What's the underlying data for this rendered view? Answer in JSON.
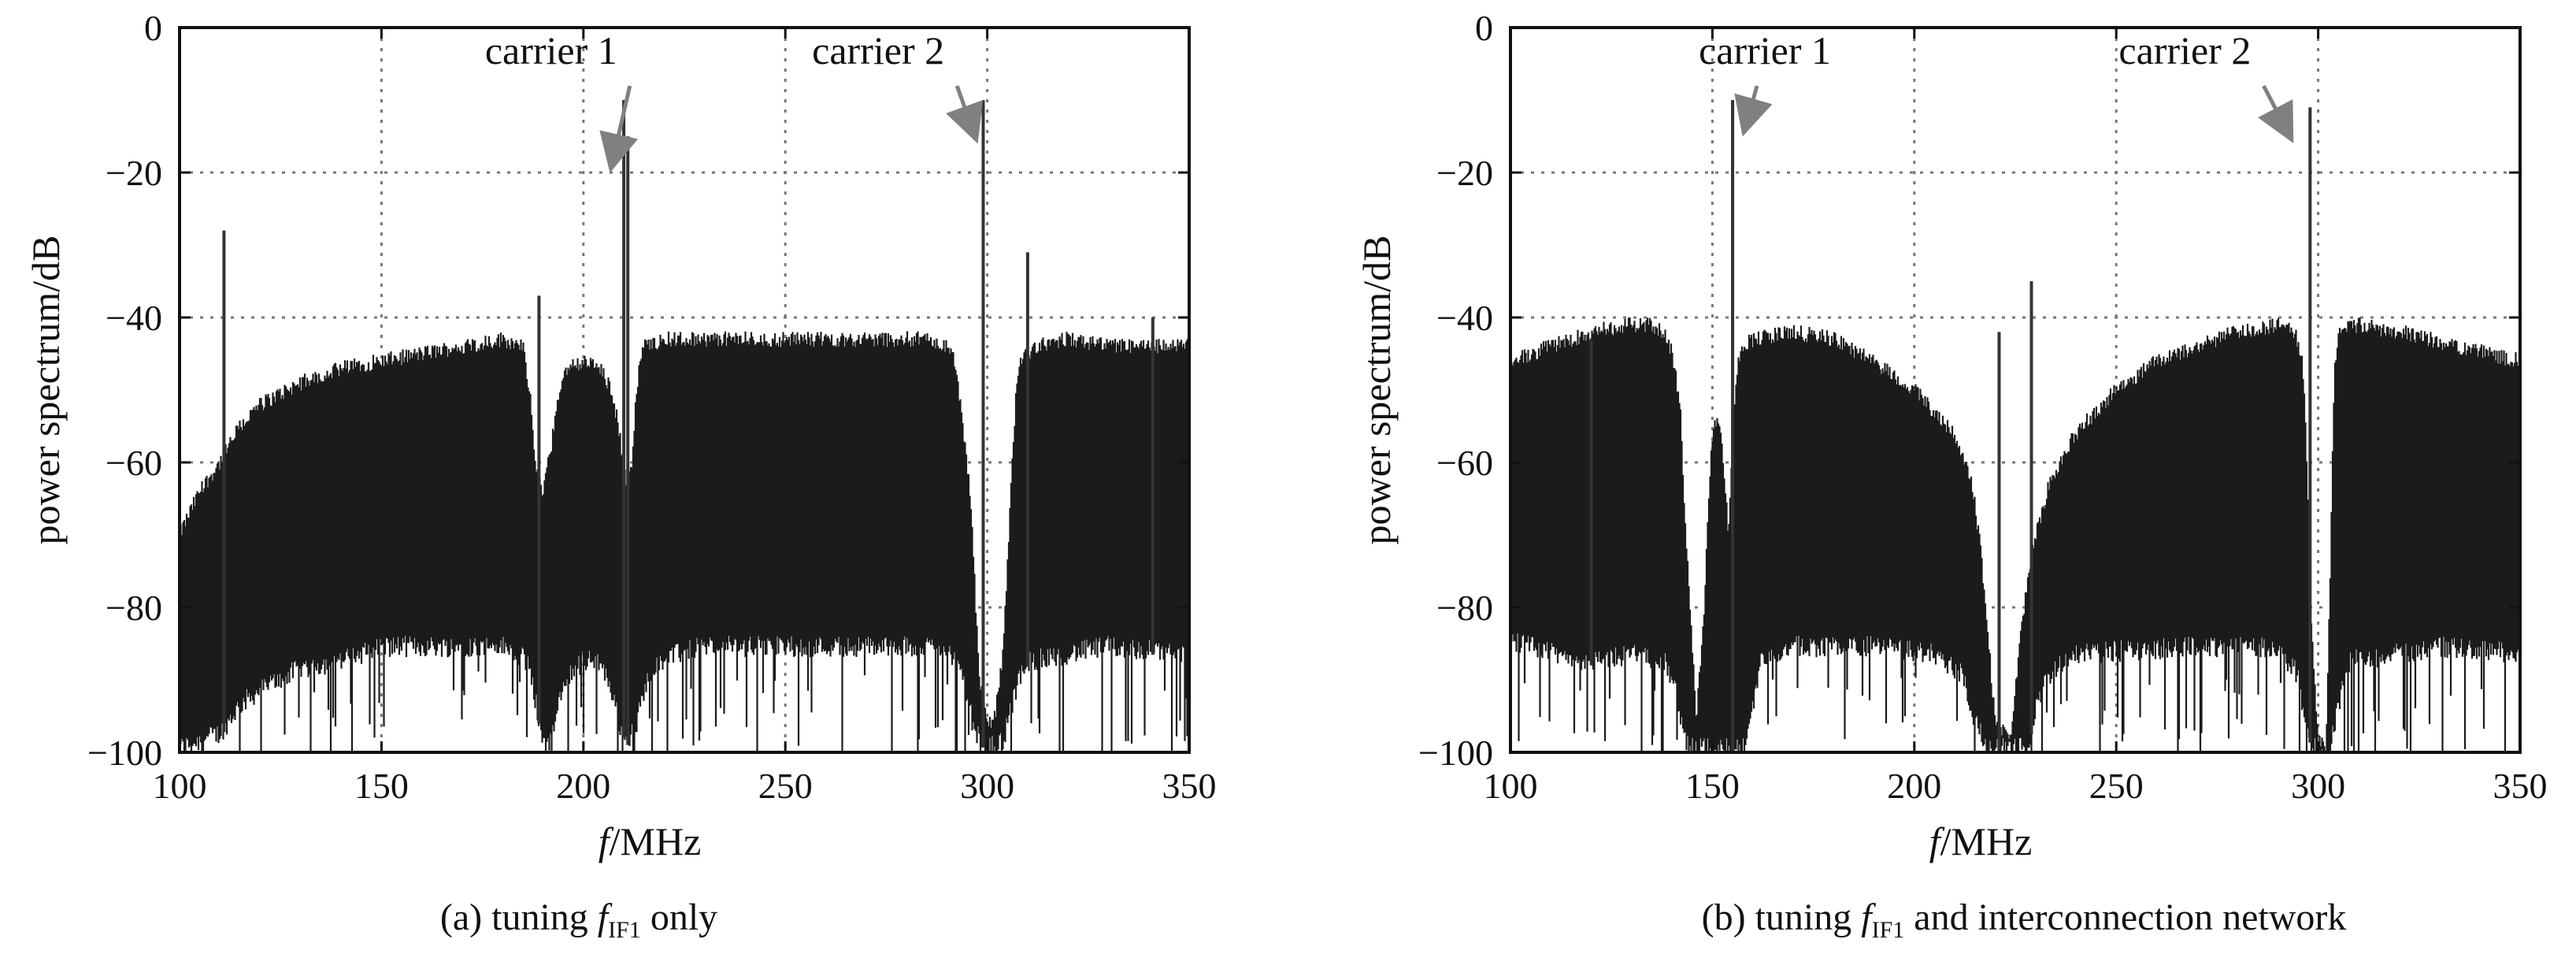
{
  "chart_data": [
    {
      "type": "area",
      "panel": "a",
      "caption": {
        "prefix": "(a) tuning ",
        "var": "f",
        "sub": "IF1",
        "suffix": " only"
      },
      "xlabel": {
        "italic": "f",
        "rest": "/MHz"
      },
      "ylabel": "power spectrum/dB",
      "xlim": [
        100,
        350
      ],
      "ylim": [
        -100,
        0
      ],
      "xticks": [
        100,
        150,
        200,
        250,
        300,
        350
      ],
      "yticks": [
        0,
        -20,
        -40,
        -60,
        -80,
        -100
      ],
      "grid": true,
      "colors": {
        "fill": "#1b1b1b",
        "spur": "#333333",
        "grid": "#777777",
        "arrow": "#808080"
      },
      "envelope_upper": [
        [
          100,
          -70
        ],
        [
          105,
          -64
        ],
        [
          110,
          -60
        ],
        [
          115,
          -55
        ],
        [
          120,
          -52
        ],
        [
          130,
          -49
        ],
        [
          140,
          -47
        ],
        [
          150,
          -46
        ],
        [
          160,
          -45
        ],
        [
          170,
          -44
        ],
        [
          180,
          -43
        ],
        [
          185,
          -44
        ],
        [
          187,
          -52
        ],
        [
          188,
          -60
        ],
        [
          190,
          -64
        ],
        [
          192,
          -58
        ],
        [
          194,
          -50
        ],
        [
          196,
          -47
        ],
        [
          200,
          -46
        ],
        [
          204,
          -47
        ],
        [
          207,
          -50
        ],
        [
          209,
          -56
        ],
        [
          210,
          -61
        ],
        [
          211,
          -63
        ],
        [
          212,
          -60
        ],
        [
          213,
          -52
        ],
        [
          214,
          -46
        ],
        [
          215,
          -44
        ],
        [
          220,
          -43
        ],
        [
          230,
          -43
        ],
        [
          250,
          -43
        ],
        [
          270,
          -43
        ],
        [
          285,
          -43
        ],
        [
          290,
          -44
        ],
        [
          292,
          -46
        ],
        [
          294,
          -55
        ],
        [
          296,
          -66
        ],
        [
          297,
          -78
        ],
        [
          298,
          -90
        ],
        [
          300,
          -96
        ],
        [
          302,
          -95
        ],
        [
          304,
          -86
        ],
        [
          305,
          -75
        ],
        [
          306,
          -62
        ],
        [
          307,
          -52
        ],
        [
          308,
          -46
        ],
        [
          312,
          -44
        ],
        [
          320,
          -43
        ],
        [
          330,
          -44
        ],
        [
          350,
          -44
        ]
      ],
      "envelope_lower": [
        [
          100,
          -100
        ],
        [
          110,
          -98
        ],
        [
          115,
          -94
        ],
        [
          120,
          -92
        ],
        [
          130,
          -89
        ],
        [
          140,
          -88
        ],
        [
          150,
          -86
        ],
        [
          160,
          -86
        ],
        [
          170,
          -86
        ],
        [
          180,
          -86
        ],
        [
          186,
          -88
        ],
        [
          188,
          -93
        ],
        [
          190,
          -99
        ],
        [
          192,
          -99
        ],
        [
          194,
          -94
        ],
        [
          196,
          -90
        ],
        [
          200,
          -88
        ],
        [
          204,
          -88
        ],
        [
          207,
          -92
        ],
        [
          209,
          -97
        ],
        [
          211,
          -99
        ],
        [
          213,
          -97
        ],
        [
          215,
          -92
        ],
        [
          218,
          -88
        ],
        [
          230,
          -86
        ],
        [
          260,
          -86
        ],
        [
          290,
          -86
        ],
        [
          294,
          -90
        ],
        [
          297,
          -98
        ],
        [
          300,
          -100
        ],
        [
          304,
          -99
        ],
        [
          307,
          -92
        ],
        [
          310,
          -88
        ],
        [
          330,
          -86
        ],
        [
          350,
          -87
        ]
      ],
      "peaks": [
        {
          "x": 111,
          "y": -28
        },
        {
          "x": 189,
          "y": -37
        },
        {
          "x": 210,
          "y": -10
        },
        {
          "x": 211,
          "y": -15
        },
        {
          "x": 299,
          "y": -10
        },
        {
          "x": 310,
          "y": -31
        },
        {
          "x": 341,
          "y": -40
        }
      ],
      "annotations": [
        {
          "text": "carrier 1",
          "tx": 192,
          "ty": -5,
          "ax": 207,
          "ay": -19
        },
        {
          "text": "carrier 2",
          "tx": 273,
          "ty": -5,
          "ax": 297,
          "ay": -15
        }
      ]
    },
    {
      "type": "area",
      "panel": "b",
      "caption": {
        "prefix": "(b) tuning ",
        "var": "f",
        "sub": "IF1",
        "suffix": " and interconnection network"
      },
      "xlabel": {
        "italic": "f",
        "rest": "/MHz"
      },
      "ylabel": "power spectrum/dB",
      "xlim": [
        100,
        350
      ],
      "ylim": [
        -100,
        0
      ],
      "xticks": [
        100,
        150,
        200,
        250,
        300,
        350
      ],
      "yticks": [
        0,
        -20,
        -40,
        -60,
        -80,
        -100
      ],
      "grid": true,
      "colors": {
        "fill": "#1b1b1b",
        "spur": "#333333",
        "grid": "#777777",
        "arrow": "#808080"
      },
      "envelope_upper": [
        [
          100,
          -46
        ],
        [
          110,
          -44
        ],
        [
          120,
          -42
        ],
        [
          130,
          -41
        ],
        [
          135,
          -41
        ],
        [
          138,
          -42
        ],
        [
          140,
          -45
        ],
        [
          142,
          -52
        ],
        [
          143,
          -65
        ],
        [
          145,
          -85
        ],
        [
          146,
          -96
        ],
        [
          148,
          -80
        ],
        [
          149,
          -65
        ],
        [
          150,
          -57
        ],
        [
          151,
          -54
        ],
        [
          152,
          -56
        ],
        [
          153,
          -62
        ],
        [
          154,
          -70
        ],
        [
          155,
          -58
        ],
        [
          156,
          -48
        ],
        [
          157,
          -44
        ],
        [
          160,
          -43
        ],
        [
          170,
          -42
        ],
        [
          180,
          -43
        ],
        [
          190,
          -46
        ],
        [
          200,
          -50
        ],
        [
          210,
          -56
        ],
        [
          214,
          -62
        ],
        [
          216,
          -70
        ],
        [
          218,
          -82
        ],
        [
          220,
          -96
        ],
        [
          224,
          -98
        ],
        [
          226,
          -86
        ],
        [
          228,
          -76
        ],
        [
          230,
          -70
        ],
        [
          234,
          -62
        ],
        [
          240,
          -56
        ],
        [
          250,
          -50
        ],
        [
          260,
          -46
        ],
        [
          270,
          -44
        ],
        [
          280,
          -42
        ],
        [
          290,
          -41
        ],
        [
          294,
          -42
        ],
        [
          296,
          -45
        ],
        [
          297,
          -55
        ],
        [
          298,
          -80
        ],
        [
          300,
          -98
        ],
        [
          302,
          -99
        ],
        [
          303,
          -75
        ],
        [
          304,
          -48
        ],
        [
          305,
          -42
        ],
        [
          310,
          -41
        ],
        [
          320,
          -42
        ],
        [
          335,
          -44
        ],
        [
          350,
          -46
        ]
      ],
      "envelope_lower": [
        [
          100,
          -85
        ],
        [
          110,
          -87
        ],
        [
          120,
          -88
        ],
        [
          130,
          -87
        ],
        [
          138,
          -88
        ],
        [
          141,
          -92
        ],
        [
          143,
          -99
        ],
        [
          145,
          -100
        ],
        [
          158,
          -100
        ],
        [
          160,
          -94
        ],
        [
          162,
          -88
        ],
        [
          170,
          -86
        ],
        [
          190,
          -86
        ],
        [
          205,
          -87
        ],
        [
          212,
          -90
        ],
        [
          215,
          -96
        ],
        [
          218,
          -100
        ],
        [
          228,
          -100
        ],
        [
          230,
          -95
        ],
        [
          233,
          -90
        ],
        [
          240,
          -87
        ],
        [
          270,
          -86
        ],
        [
          290,
          -86
        ],
        [
          295,
          -90
        ],
        [
          297,
          -98
        ],
        [
          300,
          -100
        ],
        [
          303,
          -100
        ],
        [
          305,
          -94
        ],
        [
          308,
          -88
        ],
        [
          330,
          -86
        ],
        [
          350,
          -87
        ]
      ],
      "peaks": [
        {
          "x": 155,
          "y": -10
        },
        {
          "x": 221,
          "y": -42
        },
        {
          "x": 229,
          "y": -35
        },
        {
          "x": 298,
          "y": -11
        },
        {
          "x": 120,
          "y": -43
        }
      ],
      "annotations": [
        {
          "text": "carrier 1",
          "tx": 163,
          "ty": -5,
          "ax": 158,
          "ay": -14
        },
        {
          "text": "carrier 2",
          "tx": 267,
          "ty": -5,
          "ax": 293,
          "ay": -15
        }
      ]
    }
  ]
}
